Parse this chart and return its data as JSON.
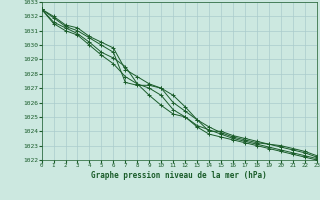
{
  "title": "Graphe pression niveau de la mer (hPa)",
  "background_color": "#cce8e0",
  "grid_color": "#aacccc",
  "line_color": "#1a5c2a",
  "xlim": [
    0,
    23
  ],
  "ylim": [
    1022,
    1033
  ],
  "xticks": [
    0,
    1,
    2,
    3,
    4,
    5,
    6,
    7,
    8,
    9,
    10,
    11,
    12,
    13,
    14,
    15,
    16,
    17,
    18,
    19,
    20,
    21,
    22,
    23
  ],
  "yticks": [
    1022,
    1023,
    1024,
    1025,
    1026,
    1027,
    1028,
    1029,
    1030,
    1031,
    1032,
    1033
  ],
  "series": [
    [
      1032.5,
      1031.9,
      1031.3,
      1031.0,
      1030.5,
      1030.0,
      1029.5,
      1027.4,
      1027.2,
      1027.2,
      1027.0,
      1026.5,
      1025.7,
      1024.8,
      1024.0,
      1024.0,
      1023.7,
      1023.5,
      1023.3,
      1023.1,
      1023.0,
      1022.8,
      1022.6,
      1022.3
    ],
    [
      1032.5,
      1032.0,
      1031.4,
      1031.2,
      1030.6,
      1030.2,
      1029.8,
      1028.3,
      1027.8,
      1027.3,
      1027.0,
      1026.0,
      1025.4,
      1024.8,
      1024.3,
      1023.9,
      1023.6,
      1023.4,
      1023.2,
      1023.1,
      1022.9,
      1022.7,
      1022.5,
      1022.2
    ],
    [
      1032.5,
      1031.6,
      1031.2,
      1030.8,
      1030.2,
      1029.5,
      1029.1,
      1028.5,
      1027.3,
      1026.5,
      1025.8,
      1025.2,
      1025.0,
      1024.4,
      1024.1,
      1023.8,
      1023.5,
      1023.3,
      1023.1,
      1022.9,
      1022.7,
      1022.5,
      1022.3,
      1022.1
    ],
    [
      1032.5,
      1031.5,
      1031.0,
      1030.7,
      1030.0,
      1029.3,
      1028.7,
      1027.8,
      1027.3,
      1027.0,
      1026.5,
      1025.5,
      1025.0,
      1024.3,
      1023.8,
      1023.6,
      1023.4,
      1023.2,
      1023.0,
      1022.8,
      1022.6,
      1022.4,
      1022.2,
      1022.0
    ]
  ]
}
